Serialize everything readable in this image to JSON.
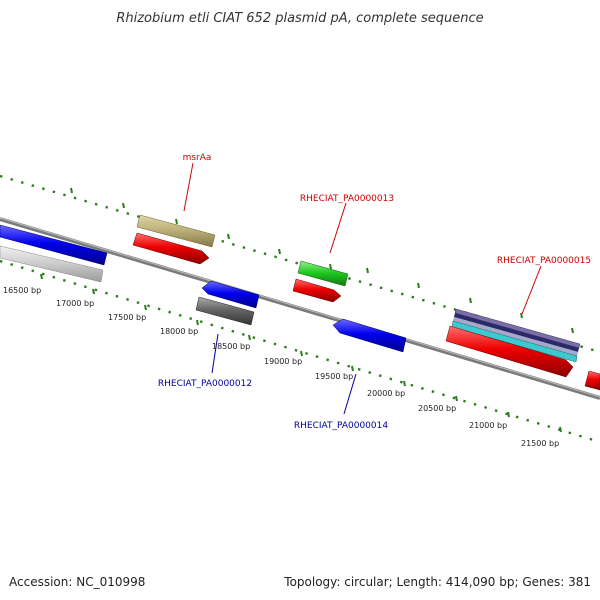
{
  "title": "Rhizobium etli CIAT 652 plasmid pA, complete sequence",
  "footer": {
    "accession": "Accession: NC_010998",
    "summary": "Topology: circular; Length: 414,090 bp; Genes: 381"
  },
  "colors": {
    "forward_label": "#cc0000",
    "reverse_label": "#000099",
    "ticks": "#2e7d1e",
    "backbone": "#7a7a7a"
  },
  "scale_ticks": [
    "16500 bp",
    "17000 bp",
    "17500 bp",
    "18000 bp",
    "18500 bp",
    "19000 bp",
    "19500 bp",
    "20000 bp",
    "20500 bp",
    "21000 bp",
    "21500 bp"
  ],
  "gene_labels": [
    {
      "text": "msrAa",
      "strand": "forward"
    },
    {
      "text": "RHECIAT_PA0000013",
      "strand": "forward"
    },
    {
      "text": "RHECIAT_PA0000015",
      "strand": "forward"
    },
    {
      "text": "RHECIAT_PA0000012",
      "strand": "reverse"
    },
    {
      "text": "RHECIAT_PA0000014",
      "strand": "reverse"
    }
  ]
}
